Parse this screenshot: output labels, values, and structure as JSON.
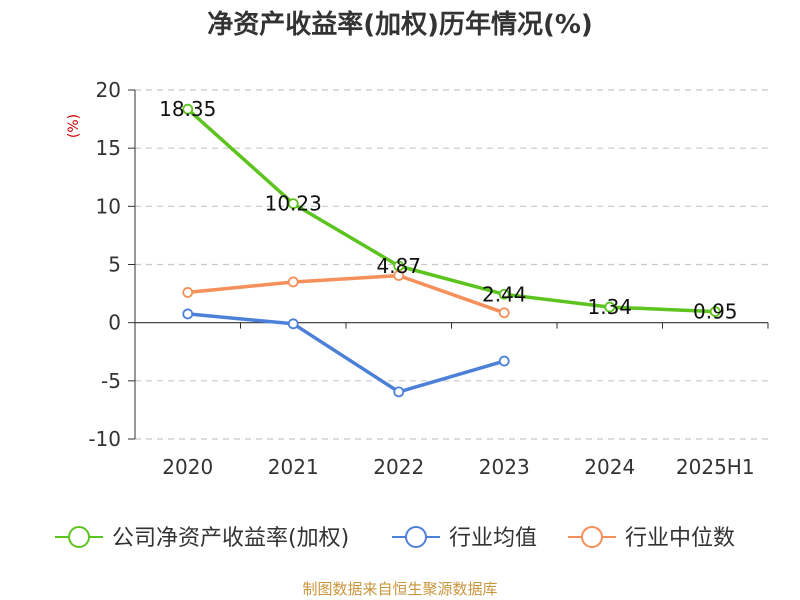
{
  "chart_data": {
    "type": "line",
    "title": "净资产收益率(加权)历年情况(%)",
    "ylabel": "(%)",
    "categories": [
      "2020",
      "2021",
      "2022",
      "2023",
      "2024",
      "2025H1"
    ],
    "ylim": [
      -10,
      20
    ],
    "yticks": [
      -10,
      -5,
      0,
      5,
      10,
      15,
      20
    ],
    "grid": true,
    "legend_position": "bottom",
    "series": [
      {
        "name": "公司净资产收益率(加权)",
        "color": "#5dc41f",
        "values": [
          18.35,
          10.23,
          4.87,
          2.44,
          1.34,
          0.95
        ],
        "labels": [
          "18.35",
          "10.23",
          "4.87",
          "2.44",
          "1.34",
          "0.95"
        ]
      },
      {
        "name": "行业均值",
        "color": "#4d80d8",
        "values": [
          0.75,
          -0.1,
          -5.95,
          -3.3,
          null,
          null
        ]
      },
      {
        "name": "行业中位数",
        "color": "#f5905a",
        "values": [
          2.6,
          3.5,
          4.05,
          0.85,
          null,
          null
        ]
      }
    ]
  },
  "source": "制图数据来自恒生聚源数据库"
}
